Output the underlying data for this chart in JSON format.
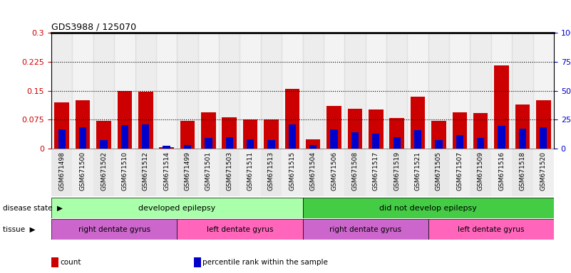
{
  "title": "GDS3988 / 125070",
  "samples": [
    "GSM671498",
    "GSM671500",
    "GSM671502",
    "GSM671510",
    "GSM671512",
    "GSM671514",
    "GSM671499",
    "GSM671501",
    "GSM671503",
    "GSM671511",
    "GSM671513",
    "GSM671515",
    "GSM671504",
    "GSM671506",
    "GSM671508",
    "GSM671517",
    "GSM671519",
    "GSM671521",
    "GSM671505",
    "GSM671507",
    "GSM671509",
    "GSM671516",
    "GSM671518",
    "GSM671520"
  ],
  "red_values": [
    0.12,
    0.125,
    0.073,
    0.15,
    0.148,
    0.005,
    0.073,
    0.095,
    0.082,
    0.075,
    0.075,
    0.155,
    0.025,
    0.11,
    0.103,
    0.102,
    0.08,
    0.135,
    0.072,
    0.095,
    0.093,
    0.215,
    0.115,
    0.125
  ],
  "blue_values": [
    0.05,
    0.055,
    0.022,
    0.062,
    0.063,
    0.007,
    0.01,
    0.028,
    0.03,
    0.025,
    0.022,
    0.063,
    0.01,
    0.05,
    0.042,
    0.04,
    0.03,
    0.048,
    0.022,
    0.035,
    0.028,
    0.06,
    0.052,
    0.055
  ],
  "ylim": [
    0,
    0.3
  ],
  "yticks_left": [
    0,
    0.075,
    0.15,
    0.225,
    0.3
  ],
  "yticks_right": [
    0,
    25,
    50,
    75,
    100
  ],
  "dotted_lines": [
    0.075,
    0.15,
    0.225
  ],
  "disease_state_groups": [
    {
      "label": "developed epilepsy",
      "start": 0,
      "end": 12,
      "color": "#AAFFAA"
    },
    {
      "label": "did not develop epilepsy",
      "start": 12,
      "end": 24,
      "color": "#44CC44"
    }
  ],
  "tissue_groups": [
    {
      "label": "right dentate gyrus",
      "start": 0,
      "end": 6,
      "color": "#CC66CC"
    },
    {
      "label": "left dentate gyrus",
      "start": 6,
      "end": 12,
      "color": "#FF66BB"
    },
    {
      "label": "right dentate gyrus",
      "start": 12,
      "end": 18,
      "color": "#CC66CC"
    },
    {
      "label": "left dentate gyrus",
      "start": 18,
      "end": 24,
      "color": "#FF66BB"
    }
  ],
  "red_color": "#CC0000",
  "blue_color": "#0000CC",
  "bar_width": 0.7,
  "blue_bar_width": 0.35,
  "legend_items": [
    {
      "label": "count",
      "color": "#CC0000"
    },
    {
      "label": "percentile rank within the sample",
      "color": "#0000CC"
    }
  ],
  "disease_state_label": "disease state",
  "tissue_label": "tissue",
  "col_bg_even": "#CCCCCC",
  "col_bg_odd": "#DDDDDD"
}
